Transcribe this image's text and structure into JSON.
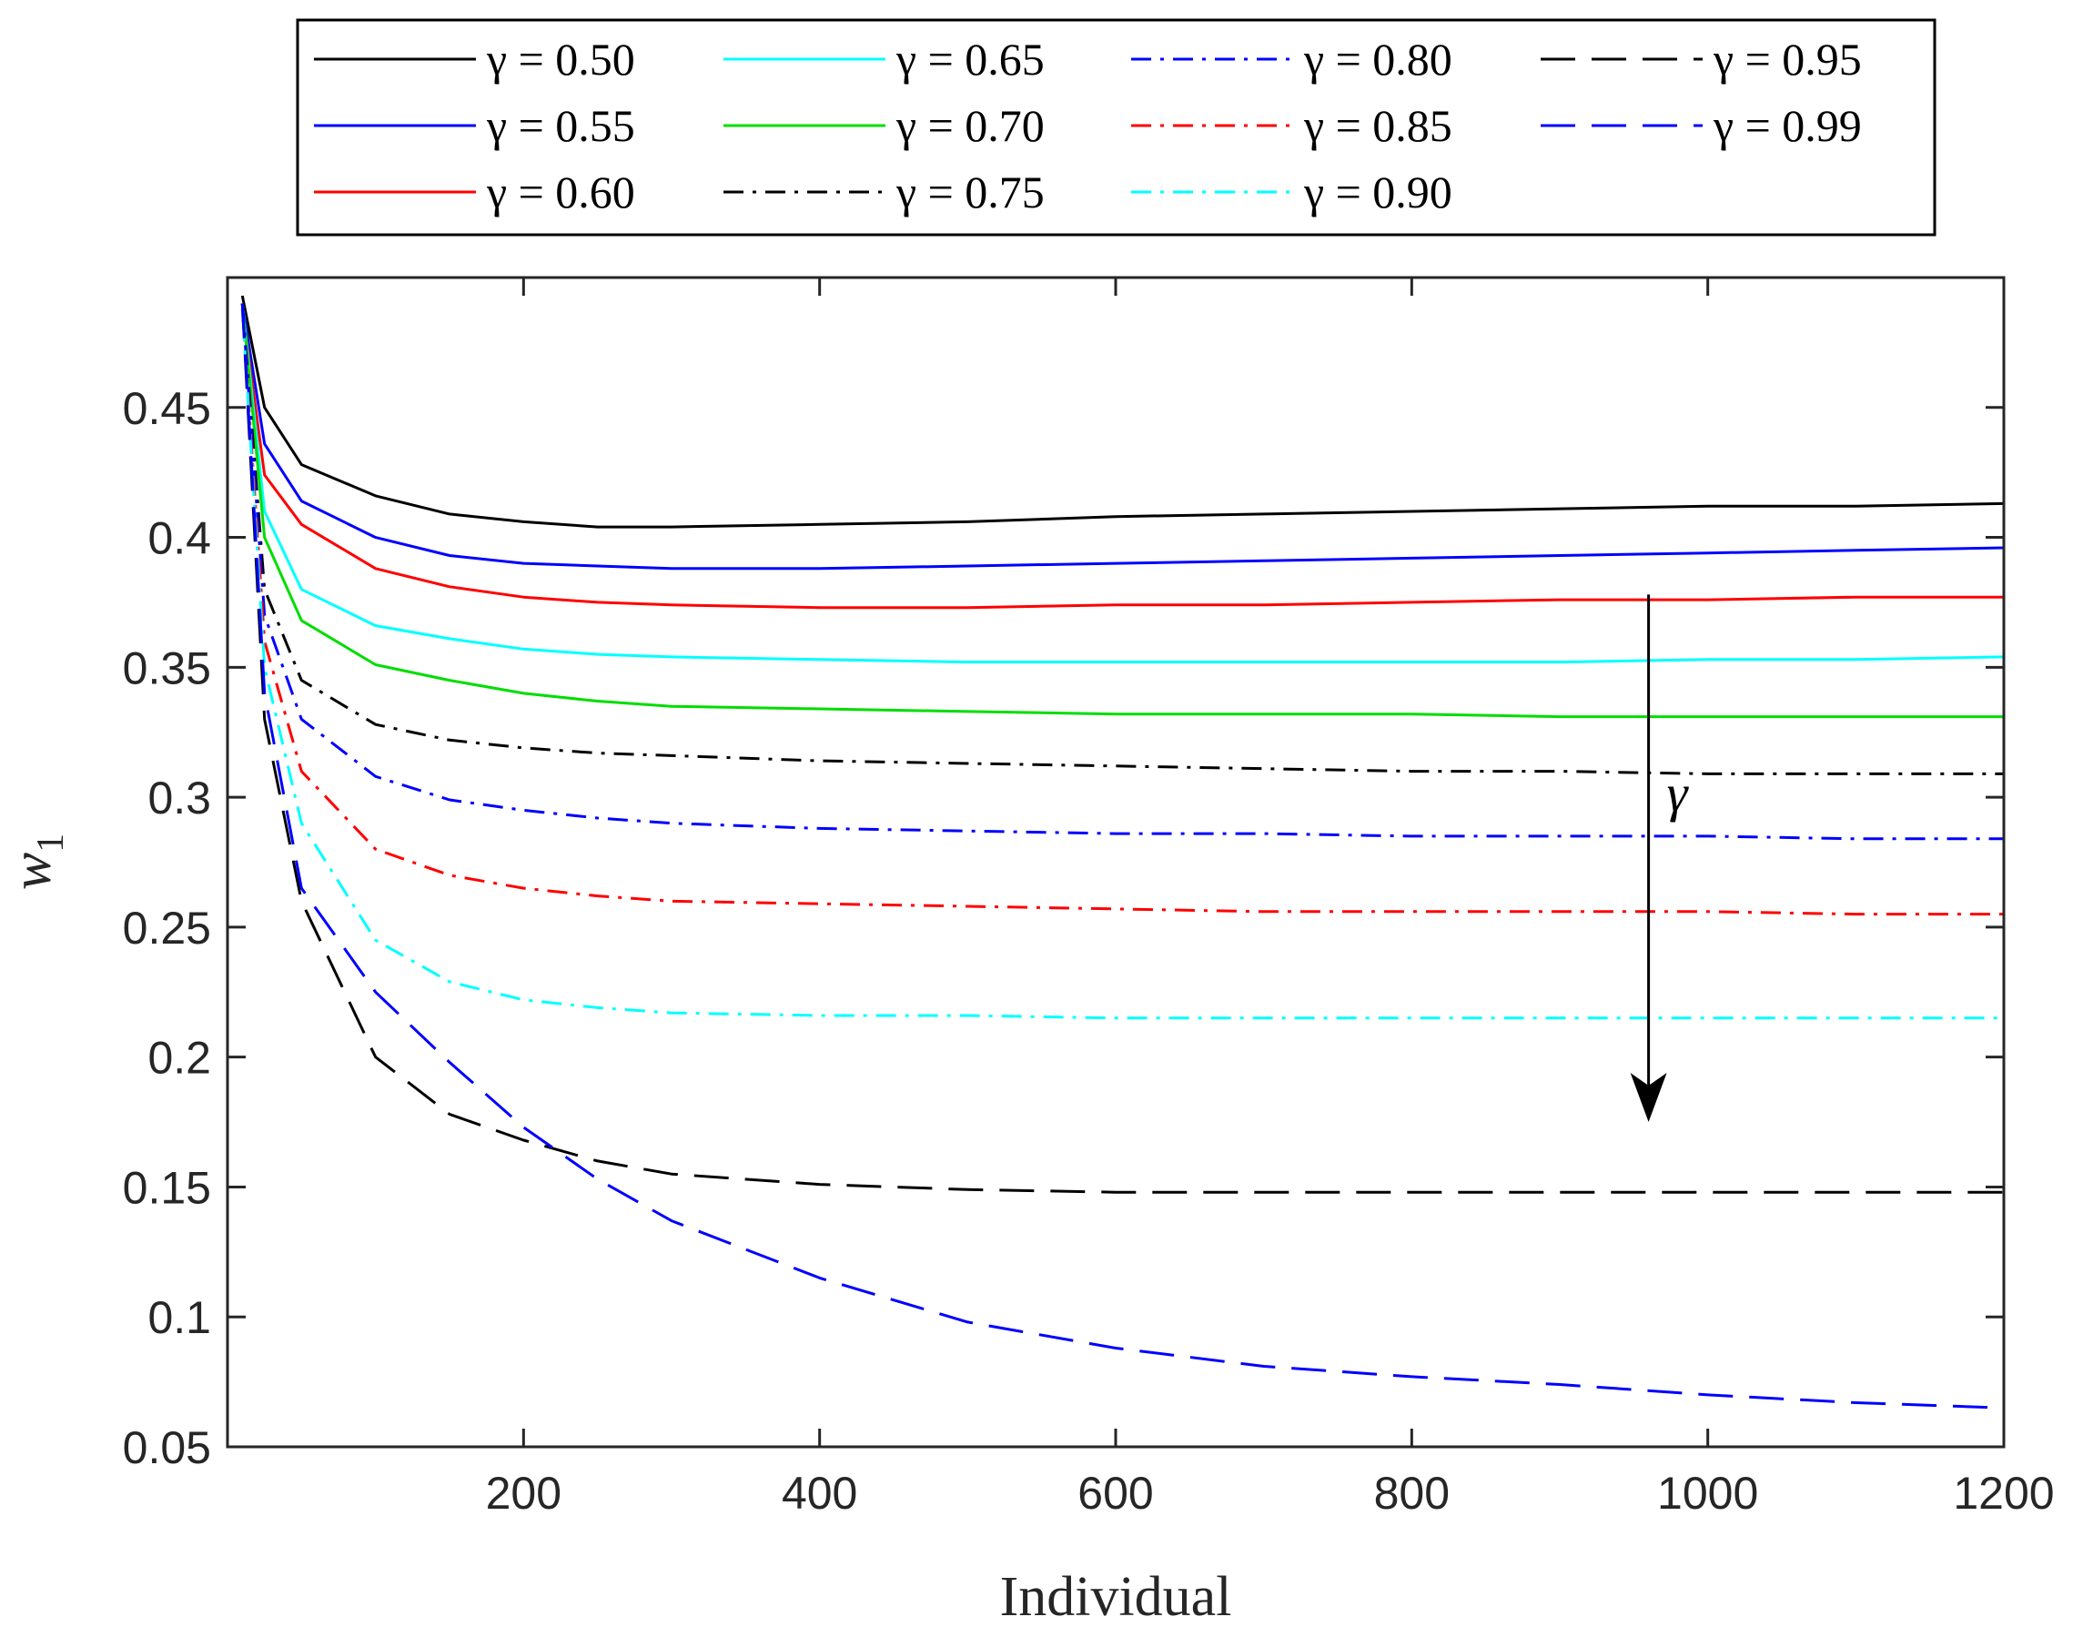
{
  "chart_data": {
    "type": "line",
    "title": "",
    "xlabel": "Individual",
    "ylabel": "w",
    "ylabel_subscript": "1",
    "xlim": [
      0,
      1200
    ],
    "ylim": [
      0.05,
      0.5
    ],
    "xticks": [
      200,
      400,
      600,
      800,
      1000,
      1200
    ],
    "xtick_labels": [
      "200",
      "400",
      "600",
      "800",
      "1000",
      "1200"
    ],
    "yticks": [
      0.05,
      0.1,
      0.15,
      0.2,
      0.25,
      0.3,
      0.35,
      0.4,
      0.45
    ],
    "ytick_labels": [
      "0.05",
      "0.1",
      "0.15",
      "0.2",
      "0.25",
      "0.3",
      "0.35",
      "0.4",
      "0.45"
    ],
    "grid": false,
    "legend_position": "top-outside",
    "annotation": {
      "text": "γ",
      "arrow_x": 960,
      "arrow_from": 0.378,
      "arrow_to": 0.175,
      "label_y": 0.3
    },
    "x": [
      10,
      25,
      50,
      100,
      150,
      200,
      250,
      300,
      400,
      500,
      600,
      700,
      800,
      900,
      1000,
      1100,
      1200
    ],
    "series": [
      {
        "name": "γ = 0.50",
        "color": "#000000",
        "dash": "solid",
        "values": [
          0.493,
          0.45,
          0.428,
          0.416,
          0.409,
          0.406,
          0.404,
          0.404,
          0.405,
          0.406,
          0.408,
          0.409,
          0.41,
          0.411,
          0.412,
          0.412,
          0.413
        ]
      },
      {
        "name": "γ = 0.55",
        "color": "#0000ff",
        "dash": "solid",
        "values": [
          0.49,
          0.436,
          0.414,
          0.4,
          0.393,
          0.39,
          0.389,
          0.388,
          0.388,
          0.389,
          0.39,
          0.391,
          0.392,
          0.393,
          0.394,
          0.395,
          0.396
        ]
      },
      {
        "name": "γ = 0.60",
        "color": "#ff0000",
        "dash": "solid",
        "values": [
          0.488,
          0.424,
          0.405,
          0.388,
          0.381,
          0.377,
          0.375,
          0.374,
          0.373,
          0.373,
          0.374,
          0.374,
          0.375,
          0.376,
          0.376,
          0.377,
          0.377
        ]
      },
      {
        "name": "γ = 0.65",
        "color": "#00ffff",
        "dash": "solid",
        "values": [
          0.49,
          0.41,
          0.38,
          0.366,
          0.361,
          0.357,
          0.355,
          0.354,
          0.353,
          0.352,
          0.352,
          0.352,
          0.352,
          0.352,
          0.353,
          0.353,
          0.354
        ]
      },
      {
        "name": "γ = 0.70",
        "color": "#00dd00",
        "dash": "solid",
        "values": [
          0.49,
          0.4,
          0.368,
          0.351,
          0.345,
          0.34,
          0.337,
          0.335,
          0.334,
          0.333,
          0.332,
          0.332,
          0.332,
          0.331,
          0.331,
          0.331,
          0.331
        ]
      },
      {
        "name": "γ = 0.75",
        "color": "#000000",
        "dash": "dashdot",
        "values": [
          0.49,
          0.38,
          0.345,
          0.328,
          0.322,
          0.319,
          0.317,
          0.316,
          0.314,
          0.313,
          0.312,
          0.311,
          0.31,
          0.31,
          0.309,
          0.309,
          0.309
        ]
      },
      {
        "name": "γ = 0.80",
        "color": "#0000ff",
        "dash": "dashdot",
        "values": [
          0.49,
          0.37,
          0.33,
          0.308,
          0.299,
          0.295,
          0.292,
          0.29,
          0.288,
          0.287,
          0.286,
          0.286,
          0.285,
          0.285,
          0.285,
          0.284,
          0.284
        ]
      },
      {
        "name": "γ = 0.85",
        "color": "#ff0000",
        "dash": "dashdot",
        "values": [
          0.488,
          0.36,
          0.31,
          0.28,
          0.27,
          0.265,
          0.262,
          0.26,
          0.259,
          0.258,
          0.257,
          0.256,
          0.256,
          0.256,
          0.256,
          0.255,
          0.255
        ]
      },
      {
        "name": "γ = 0.90",
        "color": "#00ffff",
        "dash": "dashdot",
        "values": [
          0.488,
          0.35,
          0.29,
          0.245,
          0.229,
          0.222,
          0.219,
          0.217,
          0.216,
          0.216,
          0.215,
          0.215,
          0.215,
          0.215,
          0.215,
          0.215,
          0.215
        ]
      },
      {
        "name": "γ = 0.95",
        "color": "#000000",
        "dash": "dashed",
        "values": [
          0.49,
          0.33,
          0.26,
          0.2,
          0.178,
          0.168,
          0.16,
          0.155,
          0.151,
          0.149,
          0.148,
          0.148,
          0.148,
          0.148,
          0.148,
          0.148,
          0.148
        ]
      },
      {
        "name": "γ = 0.99",
        "color": "#0000ff",
        "dash": "dashed",
        "values": [
          0.49,
          0.34,
          0.265,
          0.225,
          0.198,
          0.173,
          0.153,
          0.137,
          0.115,
          0.098,
          0.088,
          0.081,
          0.077,
          0.074,
          0.07,
          0.067,
          0.065
        ]
      }
    ]
  }
}
